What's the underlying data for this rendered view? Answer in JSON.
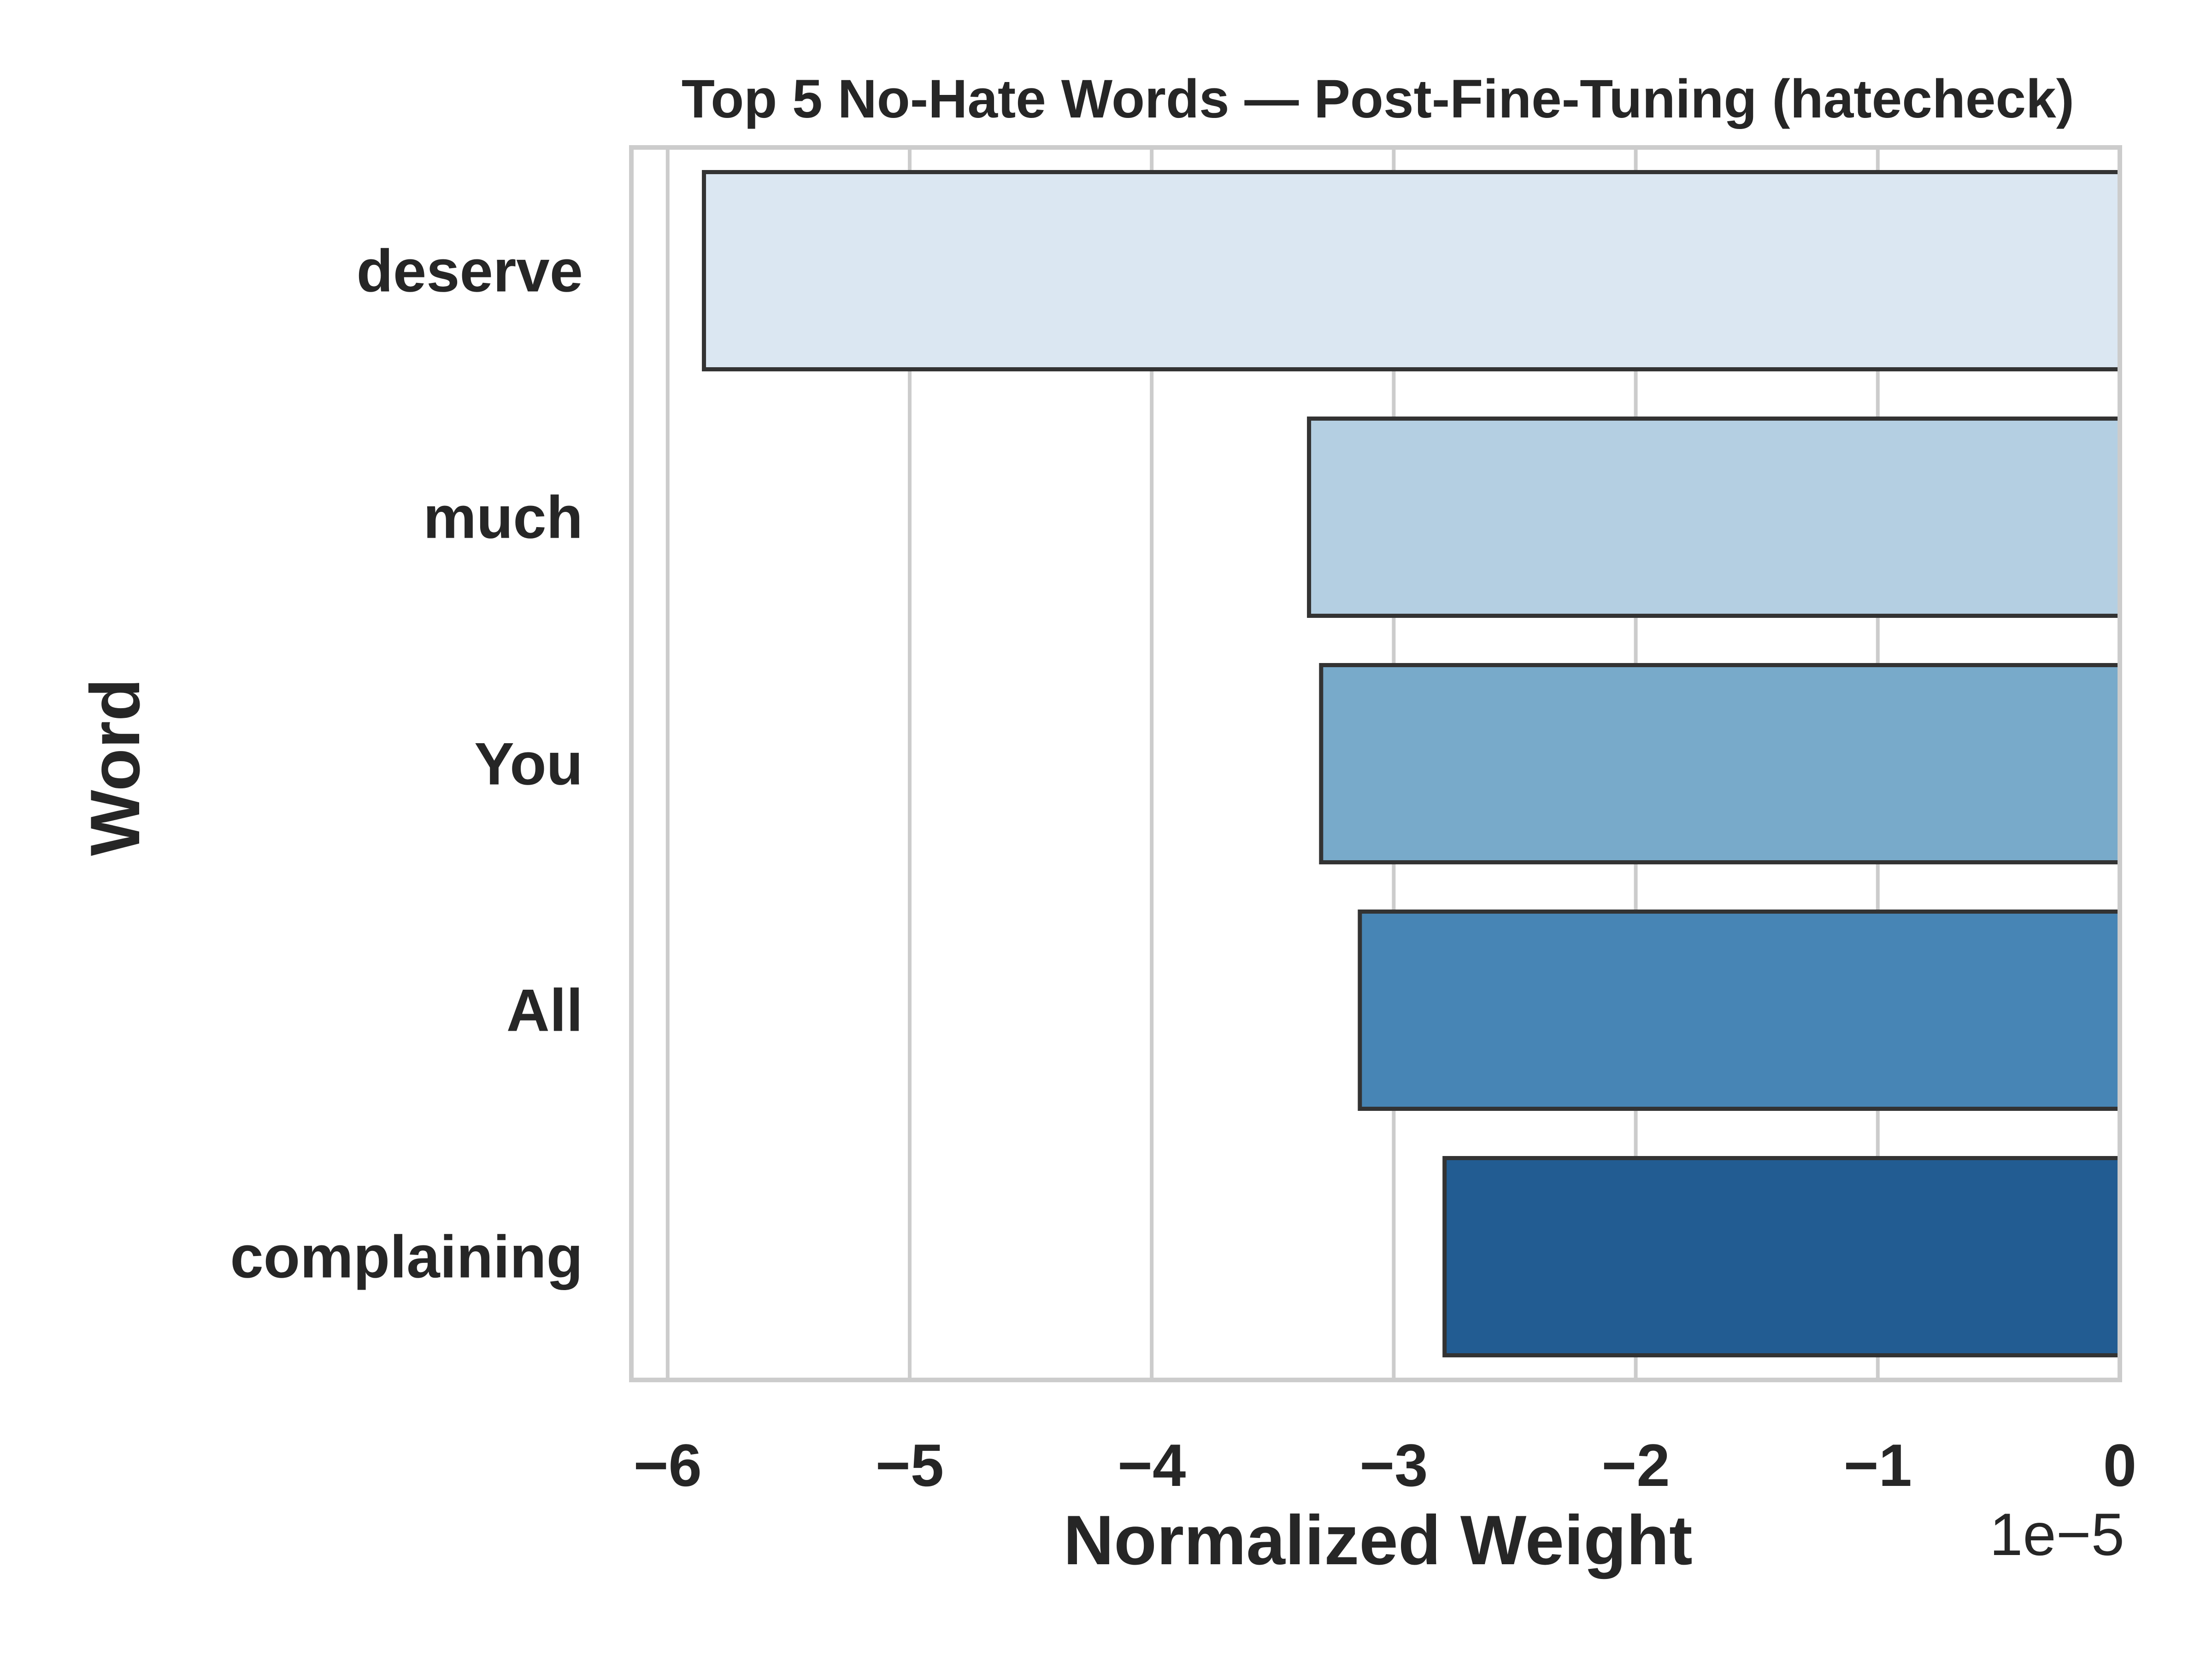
{
  "chart_data": {
    "type": "bar",
    "orientation": "horizontal",
    "title": "Top 5 No-Hate Words — Post-Fine-Tuning (hatecheck)",
    "xlabel": "Normalized Weight",
    "ylabel": "Word",
    "x_offset_label": "1e−5",
    "x_scale_exponent": -5,
    "categories": [
      "deserve",
      "much",
      "You",
      "All",
      "complaining"
    ],
    "values": [
      -5.85,
      -3.35,
      -3.3,
      -3.14,
      -2.79
    ],
    "xlim": [
      -6.15,
      0
    ],
    "x_ticks": [
      -6,
      -5,
      -4,
      -3,
      -2,
      -1,
      0
    ],
    "x_tick_labels": [
      "−6",
      "−5",
      "−4",
      "−3",
      "−2",
      "−1",
      "0"
    ],
    "grid": "vertical",
    "legend": "none",
    "colors": {
      "bars": [
        "#dbe7f2",
        "#b4cfe2",
        "#78aaca",
        "#4785b5",
        "#225c92"
      ],
      "bar_edge": "#333333",
      "grid": "#cccccc",
      "frame": "#cccccc",
      "text": "#262626"
    }
  }
}
